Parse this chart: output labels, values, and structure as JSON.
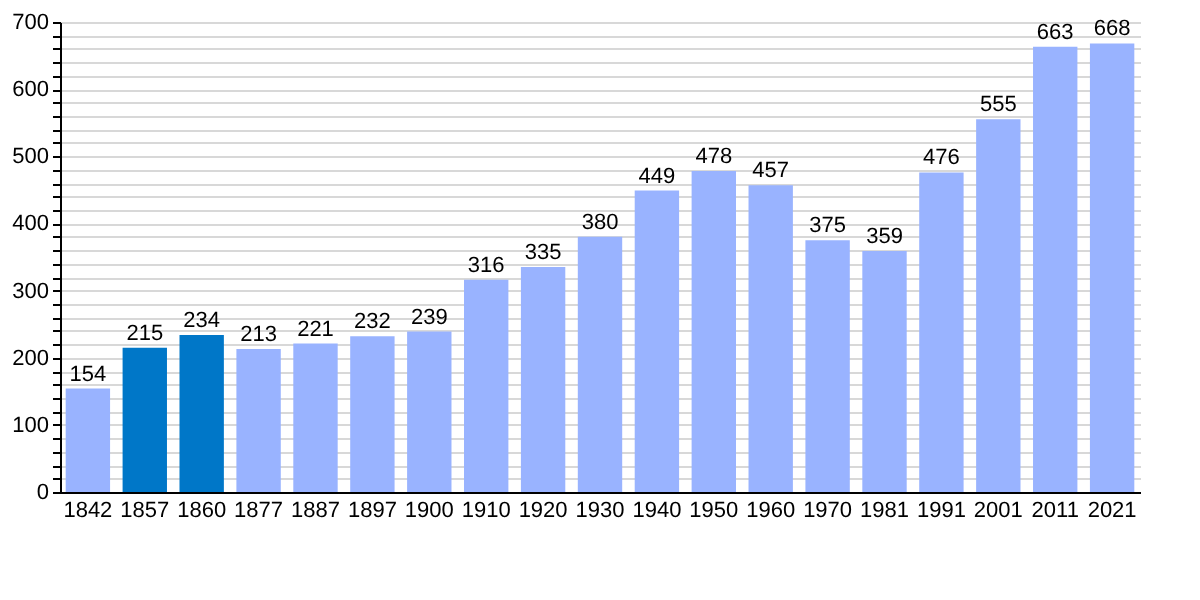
{
  "chart_data": {
    "type": "bar",
    "categories": [
      "1842",
      "1857",
      "1860",
      "1877",
      "1887",
      "1897",
      "1900",
      "1910",
      "1920",
      "1930",
      "1940",
      "1950",
      "1960",
      "1970",
      "1981",
      "1991",
      "2001",
      "2011",
      "2021"
    ],
    "values": [
      154,
      215,
      234,
      213,
      221,
      232,
      239,
      316,
      335,
      380,
      449,
      478,
      457,
      375,
      359,
      476,
      555,
      663,
      668
    ],
    "colors": [
      "#99b3ff",
      "#0077c8",
      "#0077c8",
      "#99b3ff",
      "#99b3ff",
      "#99b3ff",
      "#99b3ff",
      "#99b3ff",
      "#99b3ff",
      "#99b3ff",
      "#99b3ff",
      "#99b3ff",
      "#99b3ff",
      "#99b3ff",
      "#99b3ff",
      "#99b3ff",
      "#99b3ff",
      "#99b3ff",
      "#99b3ff"
    ],
    "ylim": [
      0,
      700
    ],
    "yticks": [
      0,
      {
        "value": 20,
        "label": null
      },
      {
        "value": 40,
        "label": null
      },
      {
        "value": 60,
        "label": null
      },
      {
        "value": 80,
        "label": null
      },
      100,
      {
        "value": 120,
        "label": null
      },
      {
        "value": 140,
        "label": null
      },
      {
        "value": 160,
        "label": null
      },
      {
        "value": 180,
        "label": null
      },
      200,
      {
        "value": 220,
        "label": null
      },
      {
        "value": 240,
        "label": null
      },
      {
        "value": 260,
        "label": null
      },
      {
        "value": 280,
        "label": null
      },
      300,
      {
        "value": 320,
        "label": null
      },
      {
        "value": 340,
        "label": null
      },
      {
        "value": 360,
        "label": null
      },
      {
        "value": 380,
        "label": null
      },
      400,
      {
        "value": 420,
        "label": null
      },
      {
        "value": 440,
        "label": null
      },
      {
        "value": 460,
        "label": null
      },
      {
        "value": 480,
        "label": null
      },
      500,
      {
        "value": 520,
        "label": null
      },
      {
        "value": 540,
        "label": null
      },
      {
        "value": 560,
        "label": null
      },
      {
        "value": 580,
        "label": null
      },
      600,
      {
        "value": 620,
        "label": null
      },
      {
        "value": 640,
        "label": null
      },
      {
        "value": 660,
        "label": null
      },
      {
        "value": 680,
        "label": null
      },
      700
    ],
    "grid": "y",
    "data_labels": true
  }
}
